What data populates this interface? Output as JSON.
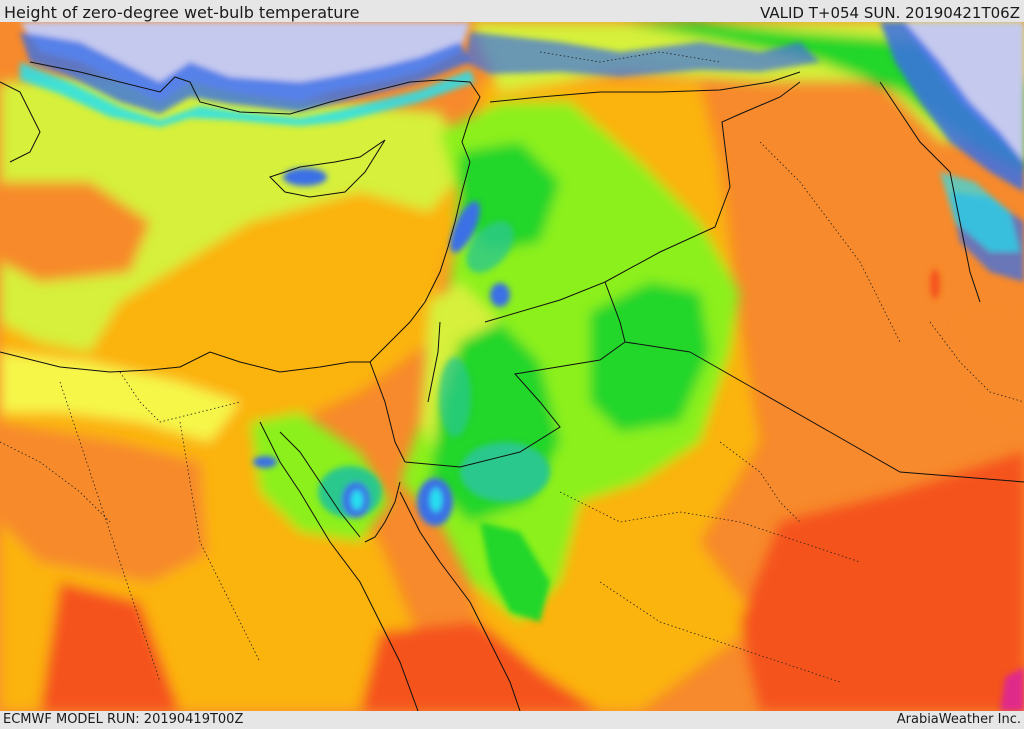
{
  "header": {
    "title": "Height of zero-degree wet-bulb temperature",
    "valid_time": "VALID T+054 SUN. 20190421T06Z"
  },
  "footer": {
    "model_run": "ECMWF MODEL RUN: 20190419T00Z",
    "credit": "ArabiaWeather Inc."
  },
  "colors": {
    "sea_high": "#c5c9ee",
    "blue": "#3a6fe6",
    "cyan": "#26e0f0",
    "teal": "#2ac88c",
    "green": "#22d62a",
    "light_green": "#8cf01e",
    "yellow_green": "#d6f03a",
    "yellow": "#f6f64a",
    "amber": "#fbb30d",
    "orange": "#f78a2c",
    "red_orange": "#f5521a",
    "magenta": "#e02a8a",
    "borders": "#111111"
  }
}
